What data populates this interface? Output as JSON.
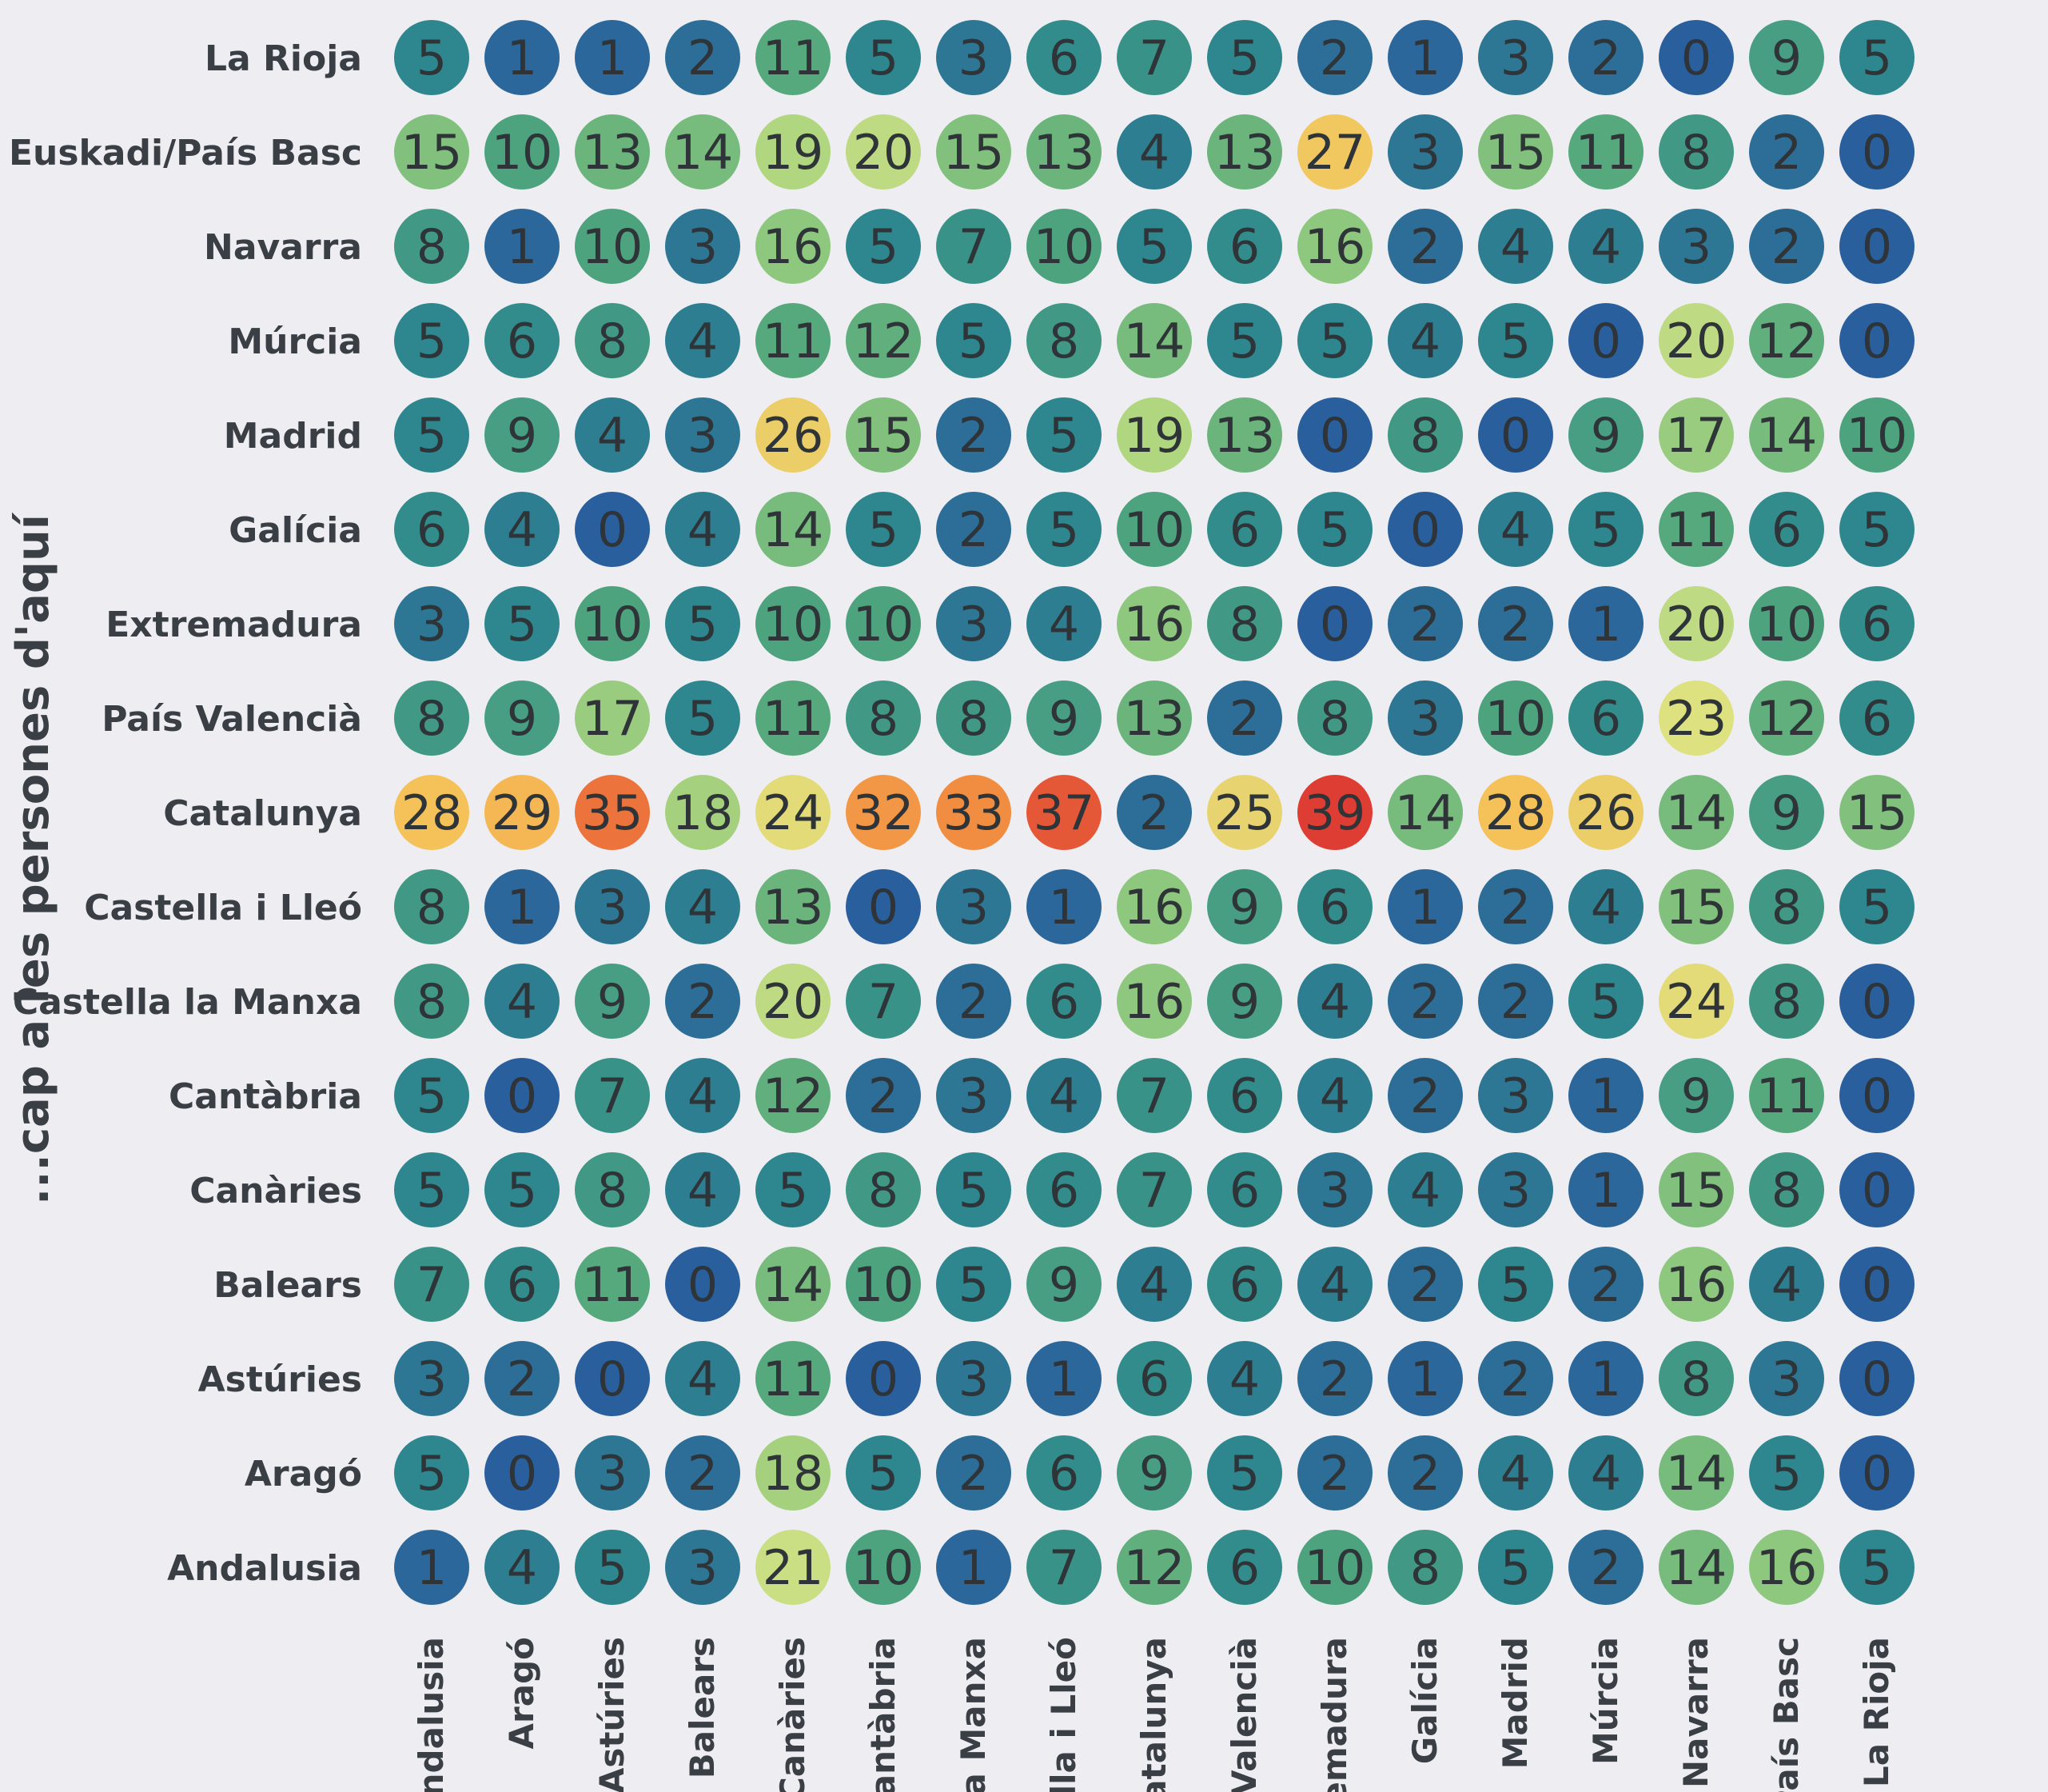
{
  "chart_data": {
    "type": "heatmap",
    "ylabel": "...cap a les persones d'aquí",
    "xlabel": "",
    "rows": [
      "La Rioja",
      "Euskadi/País Basc",
      "Navarra",
      "Múrcia",
      "Madrid",
      "Galícia",
      "Extremadura",
      "País Valencià",
      "Catalunya",
      "Castella i Lleó",
      "Castella la Manxa",
      "Cantàbria",
      "Canàries",
      "Balears",
      "Astúries",
      "Aragó",
      "Andalusia"
    ],
    "col_tick_labels": [
      "ndalusia",
      "Aragó",
      "Astúries",
      "Balears",
      "Canàries",
      "antàbria",
      "la Manxa",
      "ella i Lleó",
      "atalunya",
      "Valencià",
      "emadura",
      "Galícia",
      "Madrid",
      "Múrcia",
      "Navarra",
      "País Basc",
      "La Rioja"
    ],
    "values": [
      [
        5,
        1,
        1,
        2,
        11,
        5,
        3,
        6,
        7,
        5,
        2,
        1,
        3,
        2,
        0,
        9,
        5
      ],
      [
        15,
        10,
        13,
        14,
        19,
        20,
        15,
        13,
        4,
        13,
        27,
        3,
        15,
        11,
        8,
        2,
        0
      ],
      [
        8,
        1,
        10,
        3,
        16,
        5,
        7,
        10,
        5,
        6,
        16,
        2,
        4,
        4,
        3,
        2,
        0
      ],
      [
        5,
        6,
        8,
        4,
        11,
        12,
        5,
        8,
        14,
        5,
        5,
        4,
        5,
        0,
        20,
        12,
        0
      ],
      [
        5,
        9,
        4,
        3,
        26,
        15,
        2,
        5,
        19,
        13,
        0,
        8,
        0,
        9,
        17,
        14,
        10
      ],
      [
        6,
        4,
        0,
        4,
        14,
        5,
        2,
        5,
        10,
        6,
        5,
        0,
        4,
        5,
        11,
        6,
        5
      ],
      [
        3,
        5,
        10,
        5,
        10,
        10,
        3,
        4,
        16,
        8,
        0,
        2,
        2,
        1,
        20,
        10,
        6
      ],
      [
        8,
        9,
        17,
        5,
        11,
        8,
        8,
        9,
        13,
        2,
        8,
        3,
        10,
        6,
        23,
        12,
        6
      ],
      [
        28,
        29,
        35,
        18,
        24,
        32,
        33,
        37,
        2,
        25,
        39,
        14,
        28,
        26,
        14,
        9,
        15
      ],
      [
        8,
        1,
        3,
        4,
        13,
        0,
        3,
        1,
        16,
        9,
        6,
        1,
        2,
        4,
        15,
        8,
        5
      ],
      [
        8,
        4,
        9,
        2,
        20,
        7,
        2,
        6,
        16,
        9,
        4,
        2,
        2,
        5,
        24,
        8,
        0
      ],
      [
        5,
        0,
        7,
        4,
        12,
        2,
        3,
        4,
        7,
        6,
        4,
        2,
        3,
        1,
        9,
        11,
        0
      ],
      [
        5,
        5,
        8,
        4,
        5,
        8,
        5,
        6,
        7,
        6,
        3,
        4,
        3,
        1,
        15,
        8,
        0
      ],
      [
        7,
        6,
        11,
        0,
        14,
        10,
        5,
        9,
        4,
        6,
        4,
        2,
        5,
        2,
        16,
        4,
        0
      ],
      [
        3,
        2,
        0,
        4,
        11,
        0,
        3,
        1,
        6,
        4,
        2,
        1,
        2,
        1,
        8,
        3,
        0
      ],
      [
        5,
        0,
        3,
        2,
        18,
        5,
        2,
        6,
        9,
        5,
        2,
        2,
        4,
        4,
        14,
        5,
        0
      ],
      [
        1,
        4,
        5,
        3,
        21,
        10,
        1,
        7,
        12,
        6,
        10,
        8,
        5,
        2,
        14,
        16,
        5
      ]
    ],
    "color_scale": {
      "min": 0,
      "max": 39,
      "stops": [
        "#2a5f9e",
        "#2f8a8c",
        "#56aa7c",
        "#96cb7e",
        "#d9e584",
        "#f5c35a",
        "#f1883e",
        "#de3d33"
      ]
    }
  }
}
